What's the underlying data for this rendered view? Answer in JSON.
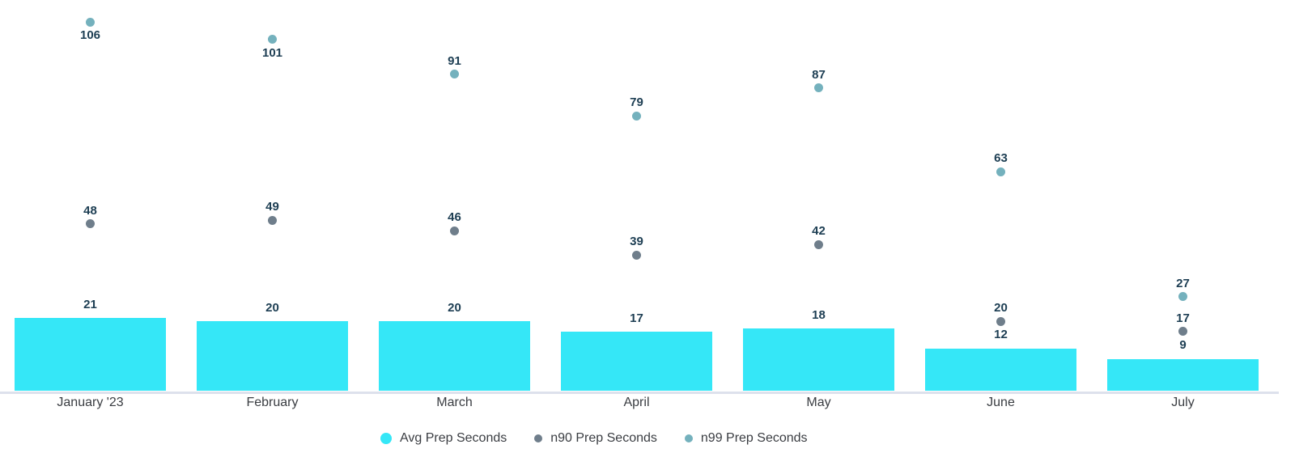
{
  "chart_data": {
    "type": "bar",
    "subtype": "combo-bar-with-point-series",
    "title": "",
    "xlabel": "",
    "ylabel": "",
    "categories": [
      "January '23",
      "February",
      "March",
      "April",
      "May",
      "June",
      "July"
    ],
    "series": [
      {
        "name": "Avg Prep Seconds",
        "mark": "bar",
        "color": "#35E7F7",
        "values": [
          21,
          20,
          20,
          17,
          18,
          12,
          9
        ]
      },
      {
        "name": "n90 Prep Seconds",
        "mark": "point",
        "color": "#6F7E8B",
        "values": [
          48,
          49,
          46,
          39,
          42,
          20,
          17
        ]
      },
      {
        "name": "n99 Prep Seconds",
        "mark": "point",
        "color": "#74B1BD",
        "values": [
          106,
          101,
          91,
          79,
          87,
          63,
          27
        ]
      }
    ],
    "ylim": [
      0,
      112
    ],
    "grid": false,
    "y_axis_visible": false,
    "x_axis_line_visible": true,
    "value_labels": true,
    "legend_position": "bottom-center",
    "colors": {
      "value_label": "#1D3E53",
      "category_label": "#3A3D42",
      "axis_line": "#DDE1EC",
      "background": "#FFFFFF"
    }
  }
}
